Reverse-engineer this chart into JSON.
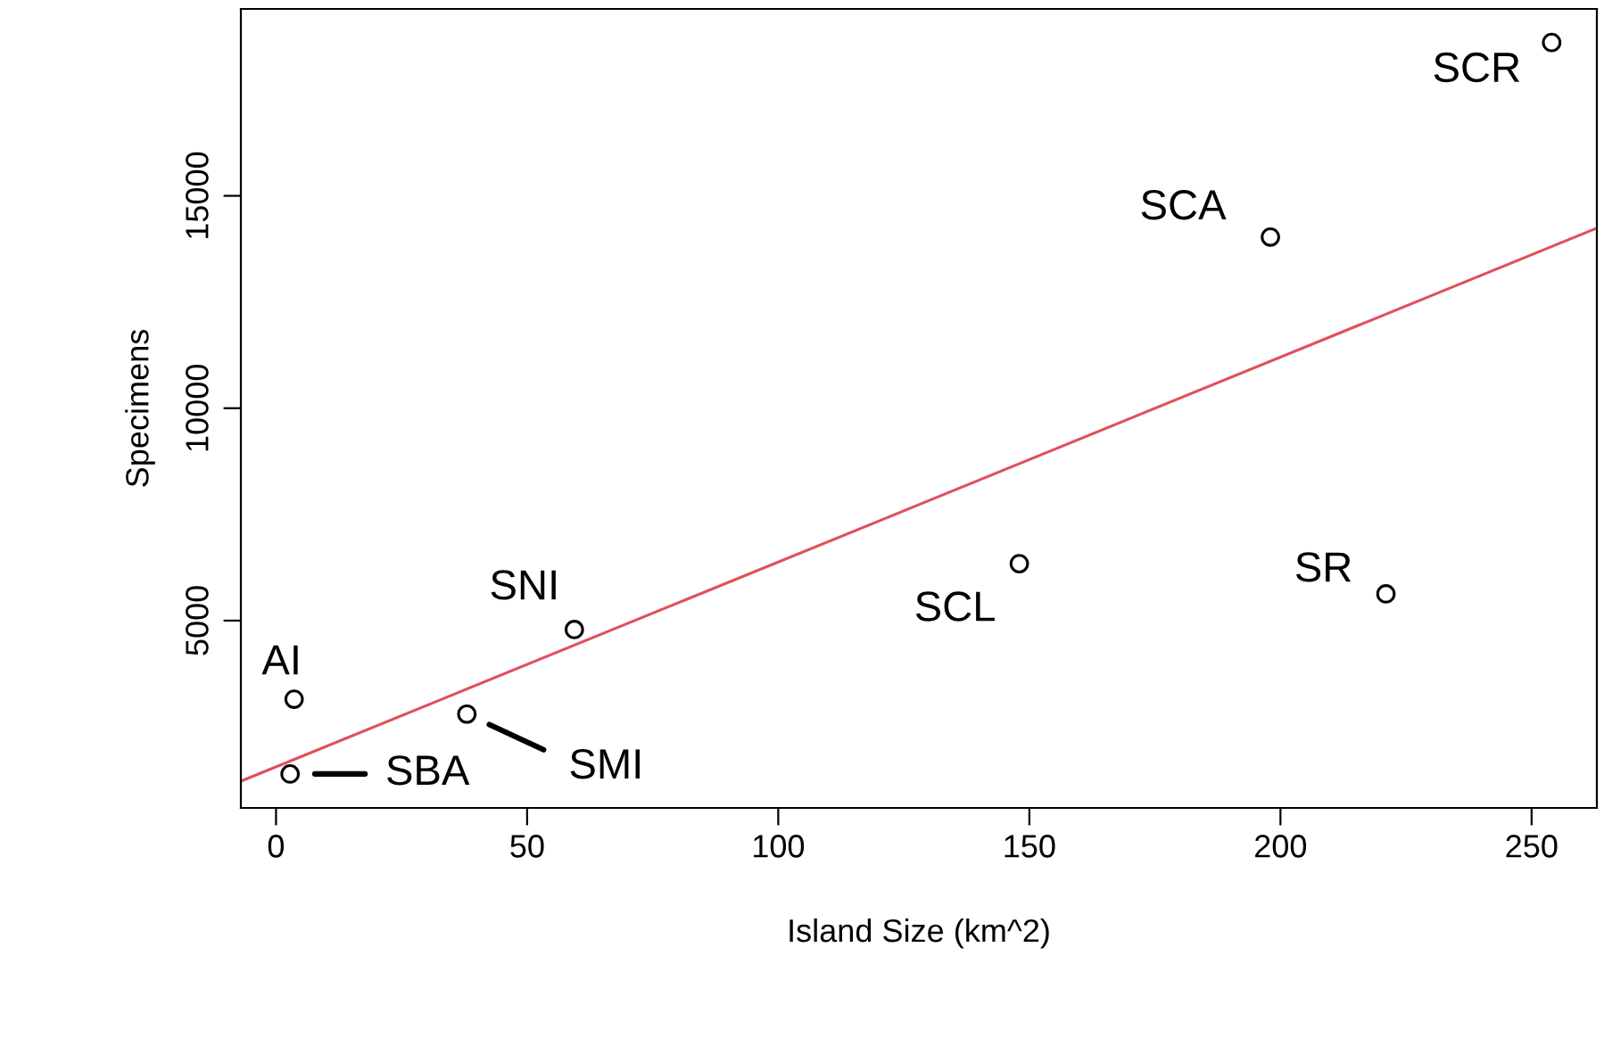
{
  "chart_data": {
    "type": "scatter",
    "xlabel": "Island Size (km^2)",
    "ylabel": "Specimens",
    "xlim": [
      -7,
      263
    ],
    "ylim": [
      590,
      19400
    ],
    "xticks": [
      0,
      50,
      100,
      150,
      200,
      250
    ],
    "yticks": [
      5000,
      10000,
      15000
    ],
    "grid": false,
    "series": [
      {
        "marker": "circle",
        "color": "#000000",
        "x": [
          3.6,
          2.8,
          38,
          59.4,
          148,
          221,
          198,
          254
        ],
        "values": [
          3150,
          1390,
          2800,
          4790,
          6340,
          5630,
          14030,
          18610
        ]
      },
      {
        "type": "line",
        "color": "#e0505a",
        "x": [
          -7,
          263
        ],
        "values": [
          1220,
          14240
        ]
      }
    ],
    "annotations": [
      {
        "text": "AI",
        "x": 3.6,
        "y": 3150
      },
      {
        "text": "SBA",
        "x": 2.8,
        "y": 1390
      },
      {
        "text": "SMI",
        "x": 38,
        "y": 2800
      },
      {
        "text": "SNI",
        "x": 59.4,
        "y": 4790
      },
      {
        "text": "SCL",
        "x": 148,
        "y": 6340
      },
      {
        "text": "SR",
        "x": 221,
        "y": 5630
      },
      {
        "text": "SCA",
        "x": 198,
        "y": 14030
      },
      {
        "text": "SCR",
        "x": 254,
        "y": 18610
      }
    ]
  }
}
